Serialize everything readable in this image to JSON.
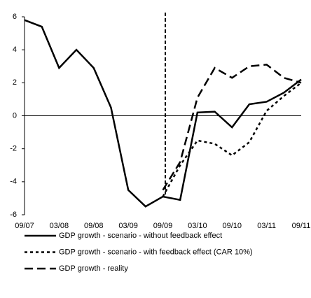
{
  "chart_data": {
    "type": "line",
    "categories": [
      "09/07",
      null,
      "03/08",
      null,
      "09/08",
      null,
      "03/09",
      null,
      "09/09",
      null,
      "03/10",
      null,
      "09/10",
      null,
      "03/11",
      null,
      "09/11"
    ],
    "series": [
      {
        "name": "GDP growth - scenario - without feedback effect",
        "color": "#000000",
        "dash": "solid",
        "values": [
          5.8,
          5.4,
          2.9,
          4.0,
          2.9,
          0.5,
          -4.5,
          -5.5,
          -4.9,
          -5.1,
          0.2,
          0.25,
          -0.7,
          0.7,
          0.85,
          1.4,
          2.2
        ]
      },
      {
        "name": "GDP growth - scenario - with feedback effect (CAR 10%)",
        "color": "#000000",
        "dash": "short",
        "values": [
          null,
          null,
          null,
          null,
          null,
          null,
          null,
          null,
          -4.9,
          -3.0,
          -1.5,
          -1.7,
          -2.4,
          -1.6,
          0.3,
          1.2,
          2.0
        ]
      },
      {
        "name": "GDP growth - reality",
        "color": "#000000",
        "dash": "long",
        "values": [
          null,
          null,
          null,
          null,
          null,
          null,
          null,
          null,
          -4.5,
          -2.8,
          1.1,
          2.9,
          2.3,
          3.0,
          3.1,
          2.3,
          2.0
        ]
      }
    ],
    "ylim": [
      -6,
      6
    ],
    "yticks": [
      -6,
      -4,
      -2,
      0,
      2,
      4,
      6
    ]
  }
}
